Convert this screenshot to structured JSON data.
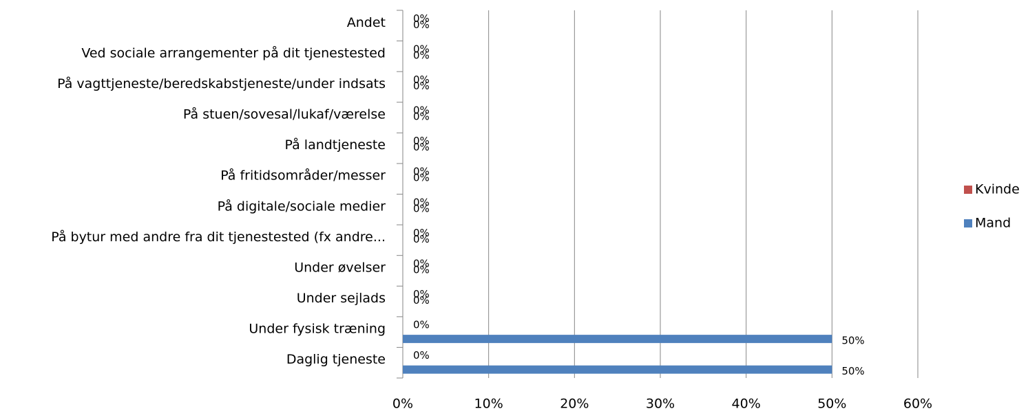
{
  "chart_data": {
    "type": "bar",
    "orientation": "horizontal",
    "categories": [
      "Daglig tjeneste",
      "Under fysisk træning",
      "Under sejlads",
      "Under øvelser",
      "På bytur med andre fra dit tjenestested (fx andre...",
      "På digitale/sociale medier",
      "På fritidsområder/messer",
      "På landtjeneste",
      "På stuen/sovesal/lukaf/værelse",
      "På vagttjeneste/beredskabstjeneste/under indsats",
      "Ved sociale arrangementer på dit tjenestested",
      "Andet"
    ],
    "series": [
      {
        "name": "Kvinde",
        "color": "#c0504d",
        "values": [
          0,
          0,
          0,
          0,
          0,
          0,
          0,
          0,
          0,
          0,
          0,
          0
        ],
        "value_labels": [
          "0%",
          "0%",
          "0%",
          "0%",
          "0%",
          "0%",
          "0%",
          "0%",
          "0%",
          "0%",
          "0%",
          "0%"
        ]
      },
      {
        "name": "Mand",
        "color": "#4f81bd",
        "values": [
          50,
          50,
          0,
          0,
          0,
          0,
          0,
          0,
          0,
          0,
          0,
          0
        ],
        "value_labels": [
          "50%",
          "50%",
          "0%",
          "0%",
          "0%",
          "0%",
          "0%",
          "0%",
          "0%",
          "0%",
          "0%",
          "0%"
        ]
      }
    ],
    "xlim": [
      0,
      60
    ],
    "xticks": [
      {
        "value": 0,
        "label": "0%"
      },
      {
        "value": 10,
        "label": "10%"
      },
      {
        "value": 20,
        "label": "20%"
      },
      {
        "value": 30,
        "label": "30%"
      },
      {
        "value": 40,
        "label": "40%"
      },
      {
        "value": 50,
        "label": "50%"
      },
      {
        "value": 60,
        "label": "60%"
      }
    ],
    "grid": true,
    "legend": "right"
  }
}
